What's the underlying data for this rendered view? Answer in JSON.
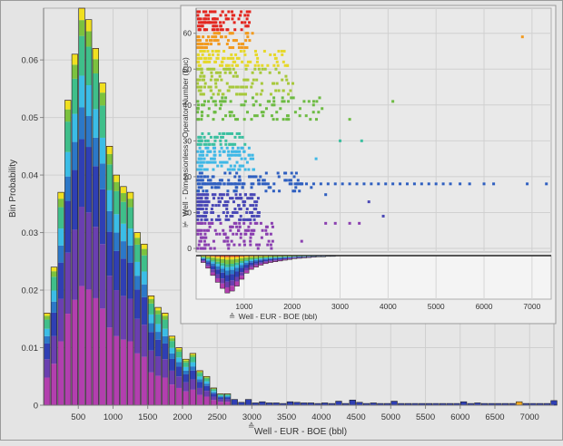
{
  "chart_data": [
    {
      "type": "bar",
      "subtype": "stacked histogram",
      "title": "",
      "xlabel": "Well - EUR - BOE (bbl)",
      "ylabel": "Bin Probability",
      "xlim": [
        0,
        7350
      ],
      "ylim": [
        0,
        0.069
      ],
      "x_ticks": [
        500,
        1000,
        1500,
        2000,
        2500,
        3000,
        3500,
        4000,
        4500,
        5000,
        5500,
        6000,
        6500,
        7000
      ],
      "y_ticks": [
        0,
        0.01,
        0.02,
        0.03,
        0.04,
        0.05,
        0.06
      ],
      "y_tick_labels": [
        "0",
        "0.01",
        "0.02",
        "0.03",
        "0.04",
        "0.05",
        "0.06"
      ],
      "bin_width": 100,
      "bin_starts": [
        0,
        100,
        200,
        300,
        400,
        500,
        600,
        700,
        800,
        900,
        1000,
        1100,
        1200,
        1300,
        1400,
        1500,
        1600,
        1700,
        1800,
        1900,
        2000,
        2100,
        2200,
        2300,
        2400,
        2500,
        2600,
        2700,
        2800,
        2900,
        3000,
        3100,
        3200,
        3300,
        3400,
        3500,
        3600,
        3700,
        3800,
        3900,
        4000,
        4100,
        4200,
        4300,
        4400,
        4500,
        4600,
        4700,
        4800,
        4900,
        5000,
        5100,
        5200,
        5300,
        5400,
        5500,
        5600,
        5700,
        5800,
        5900,
        6000,
        6100,
        6200,
        6300,
        6400,
        6500,
        6600,
        6700,
        6800,
        6900,
        7000,
        7100,
        7200,
        7300
      ],
      "bin_totals": [
        0.016,
        0.024,
        0.037,
        0.053,
        0.061,
        0.069,
        0.067,
        0.062,
        0.056,
        0.045,
        0.04,
        0.038,
        0.037,
        0.03,
        0.028,
        0.019,
        0.017,
        0.016,
        0.012,
        0.01,
        0.008,
        0.009,
        0.006,
        0.005,
        0.003,
        0.002,
        0.002,
        0.001,
        0.0005,
        0.001,
        0.0004,
        0.0006,
        0.0004,
        0.0004,
        0.0003,
        0.0006,
        0.0005,
        0.0004,
        0.0004,
        0.0003,
        0.0004,
        0.0003,
        0.0007,
        0.0003,
        0.0009,
        0.0005,
        0.0003,
        0.0004,
        0.0003,
        0.0003,
        0.0007,
        0.0003,
        0.0003,
        0.0003,
        0.0003,
        0.0003,
        0.0003,
        0.0003,
        0.0003,
        0.0003,
        0.0006,
        0.0003,
        0.0004,
        0.0003,
        0.0003,
        0.0003,
        0.0003,
        0.0003,
        0.0006,
        0.0003,
        0.0003,
        0.0003,
        0.0003,
        0.0008
      ],
      "stack_fractions": [
        0.3,
        0.2,
        0.17,
        0.08,
        0.08,
        0.1,
        0.04,
        0.03
      ],
      "series_colors": [
        "#b23fae",
        "#6a3fb0",
        "#2f3fb4",
        "#2c78c8",
        "#3bbde6",
        "#3fbf8a",
        "#7cc23e",
        "#f0e020",
        "#f5a81e",
        "#e8382a"
      ]
    },
    {
      "type": "scatter",
      "title": "",
      "xlabel": "Well - EUR - BOE (bbl)",
      "ylabel": "Well - Dimensionless - Operator Number (Euc)",
      "xlim": [
        0,
        7400
      ],
      "ylim": [
        -1,
        67
      ],
      "x_ticks": [
        1000,
        2000,
        3000,
        4000,
        5000,
        6000,
        7000
      ],
      "y_ticks": [
        0,
        10,
        20,
        30,
        40,
        50,
        60
      ],
      "bands": [
        {
          "y": [
            61,
            62,
            63,
            64,
            65,
            66
          ],
          "xmax": 1100,
          "color": "#e3261f"
        },
        {
          "y": [
            56,
            57,
            58,
            59,
            60
          ],
          "xmax": 1200,
          "color": "#f29a1f"
        },
        {
          "y": [
            51,
            52,
            53,
            54,
            55
          ],
          "xmax": 1900,
          "color": "#e6d82a"
        },
        {
          "y": [
            43,
            44,
            45,
            46,
            47,
            48,
            49,
            50
          ],
          "xmax": 2000,
          "color": "#a7c83a"
        },
        {
          "y": [
            36,
            37,
            38,
            39,
            40,
            41,
            42
          ],
          "xmax": 2600,
          "color": "#6dbb43"
        },
        {
          "y": [
            29,
            30,
            31,
            32
          ],
          "xmax": 1000,
          "color": "#3cc0a0"
        },
        {
          "y": [
            22,
            23,
            24,
            25,
            26,
            27,
            28
          ],
          "xmax": 1200,
          "color": "#3fb8e6"
        },
        {
          "y": [
            16,
            17,
            18,
            19,
            20,
            21
          ],
          "xmax": 2200,
          "color": "#2f5fc0"
        },
        {
          "y": [
            8,
            9,
            10,
            11,
            12,
            13,
            14,
            15
          ],
          "xmax": 1300,
          "color": "#4a48b6"
        },
        {
          "y": [
            0,
            1,
            2,
            3,
            4,
            5,
            6,
            7
          ],
          "xmax": 1600,
          "color": "#8a3fb0"
        }
      ],
      "outliers": [
        {
          "x": 6800,
          "y": 59,
          "color": "#f29a1f"
        },
        {
          "x": 3450,
          "y": 30,
          "color": "#3cc0a0"
        },
        {
          "x": 3000,
          "y": 30,
          "color": "#3cc0a0"
        },
        {
          "x": 4100,
          "y": 41,
          "color": "#6dbb43"
        },
        {
          "x": 3200,
          "y": 36,
          "color": "#6dbb43"
        },
        {
          "x": 3600,
          "y": 13,
          "color": "#4a48b6"
        },
        {
          "x": 3900,
          "y": 9,
          "color": "#4a48b6"
        },
        {
          "x": 3400,
          "y": 7,
          "color": "#8a3fb0"
        },
        {
          "x": 2700,
          "y": 7,
          "color": "#8a3fb0"
        },
        {
          "x": 2900,
          "y": 7,
          "color": "#8a3fb0"
        },
        {
          "x": 3200,
          "y": 7,
          "color": "#8a3fb0"
        },
        {
          "x": 2500,
          "y": 25,
          "color": "#3fb8e6"
        },
        {
          "x": 2400,
          "y": 17,
          "color": "#2f5fc0"
        },
        {
          "x": 2700,
          "y": 15,
          "color": "#2f5fc0"
        },
        {
          "x": 2200,
          "y": 2,
          "color": "#8a3fb0"
        }
      ],
      "long_row": {
        "y": 18,
        "x": [
          2300,
          2450,
          2600,
          2750,
          2900,
          3050,
          3200,
          3350,
          3500,
          3650,
          3800,
          3950,
          4100,
          4250,
          4400,
          4550,
          4700,
          4850,
          5000,
          5150,
          5300,
          5500,
          5700,
          6000,
          6200,
          6900,
          7300
        ],
        "color": "#2f5fc0"
      }
    },
    {
      "type": "bar",
      "subtype": "inverted stacked histogram (inset marginal)",
      "title": "",
      "xlabel": "Well - EUR - BOE (bbl)",
      "xlim": [
        0,
        7400
      ],
      "x_ticks": [
        1000,
        2000,
        3000,
        4000,
        5000,
        6000,
        7000
      ],
      "bin_starts": [
        100,
        200,
        300,
        400,
        500,
        600,
        700,
        800,
        900,
        1000,
        1100,
        1200,
        1300,
        1400,
        1500,
        1600,
        1700,
        1800,
        1900,
        2000,
        2100,
        2200,
        2300,
        2400,
        2500,
        2600,
        2700,
        2800
      ],
      "bin_totals": [
        0.18,
        0.33,
        0.52,
        0.7,
        0.86,
        0.98,
        0.93,
        0.8,
        0.62,
        0.46,
        0.36,
        0.3,
        0.25,
        0.21,
        0.18,
        0.16,
        0.14,
        0.12,
        0.1,
        0.08,
        0.07,
        0.06,
        0.05,
        0.04,
        0.03,
        0.03,
        0.02,
        0.02
      ]
    }
  ]
}
